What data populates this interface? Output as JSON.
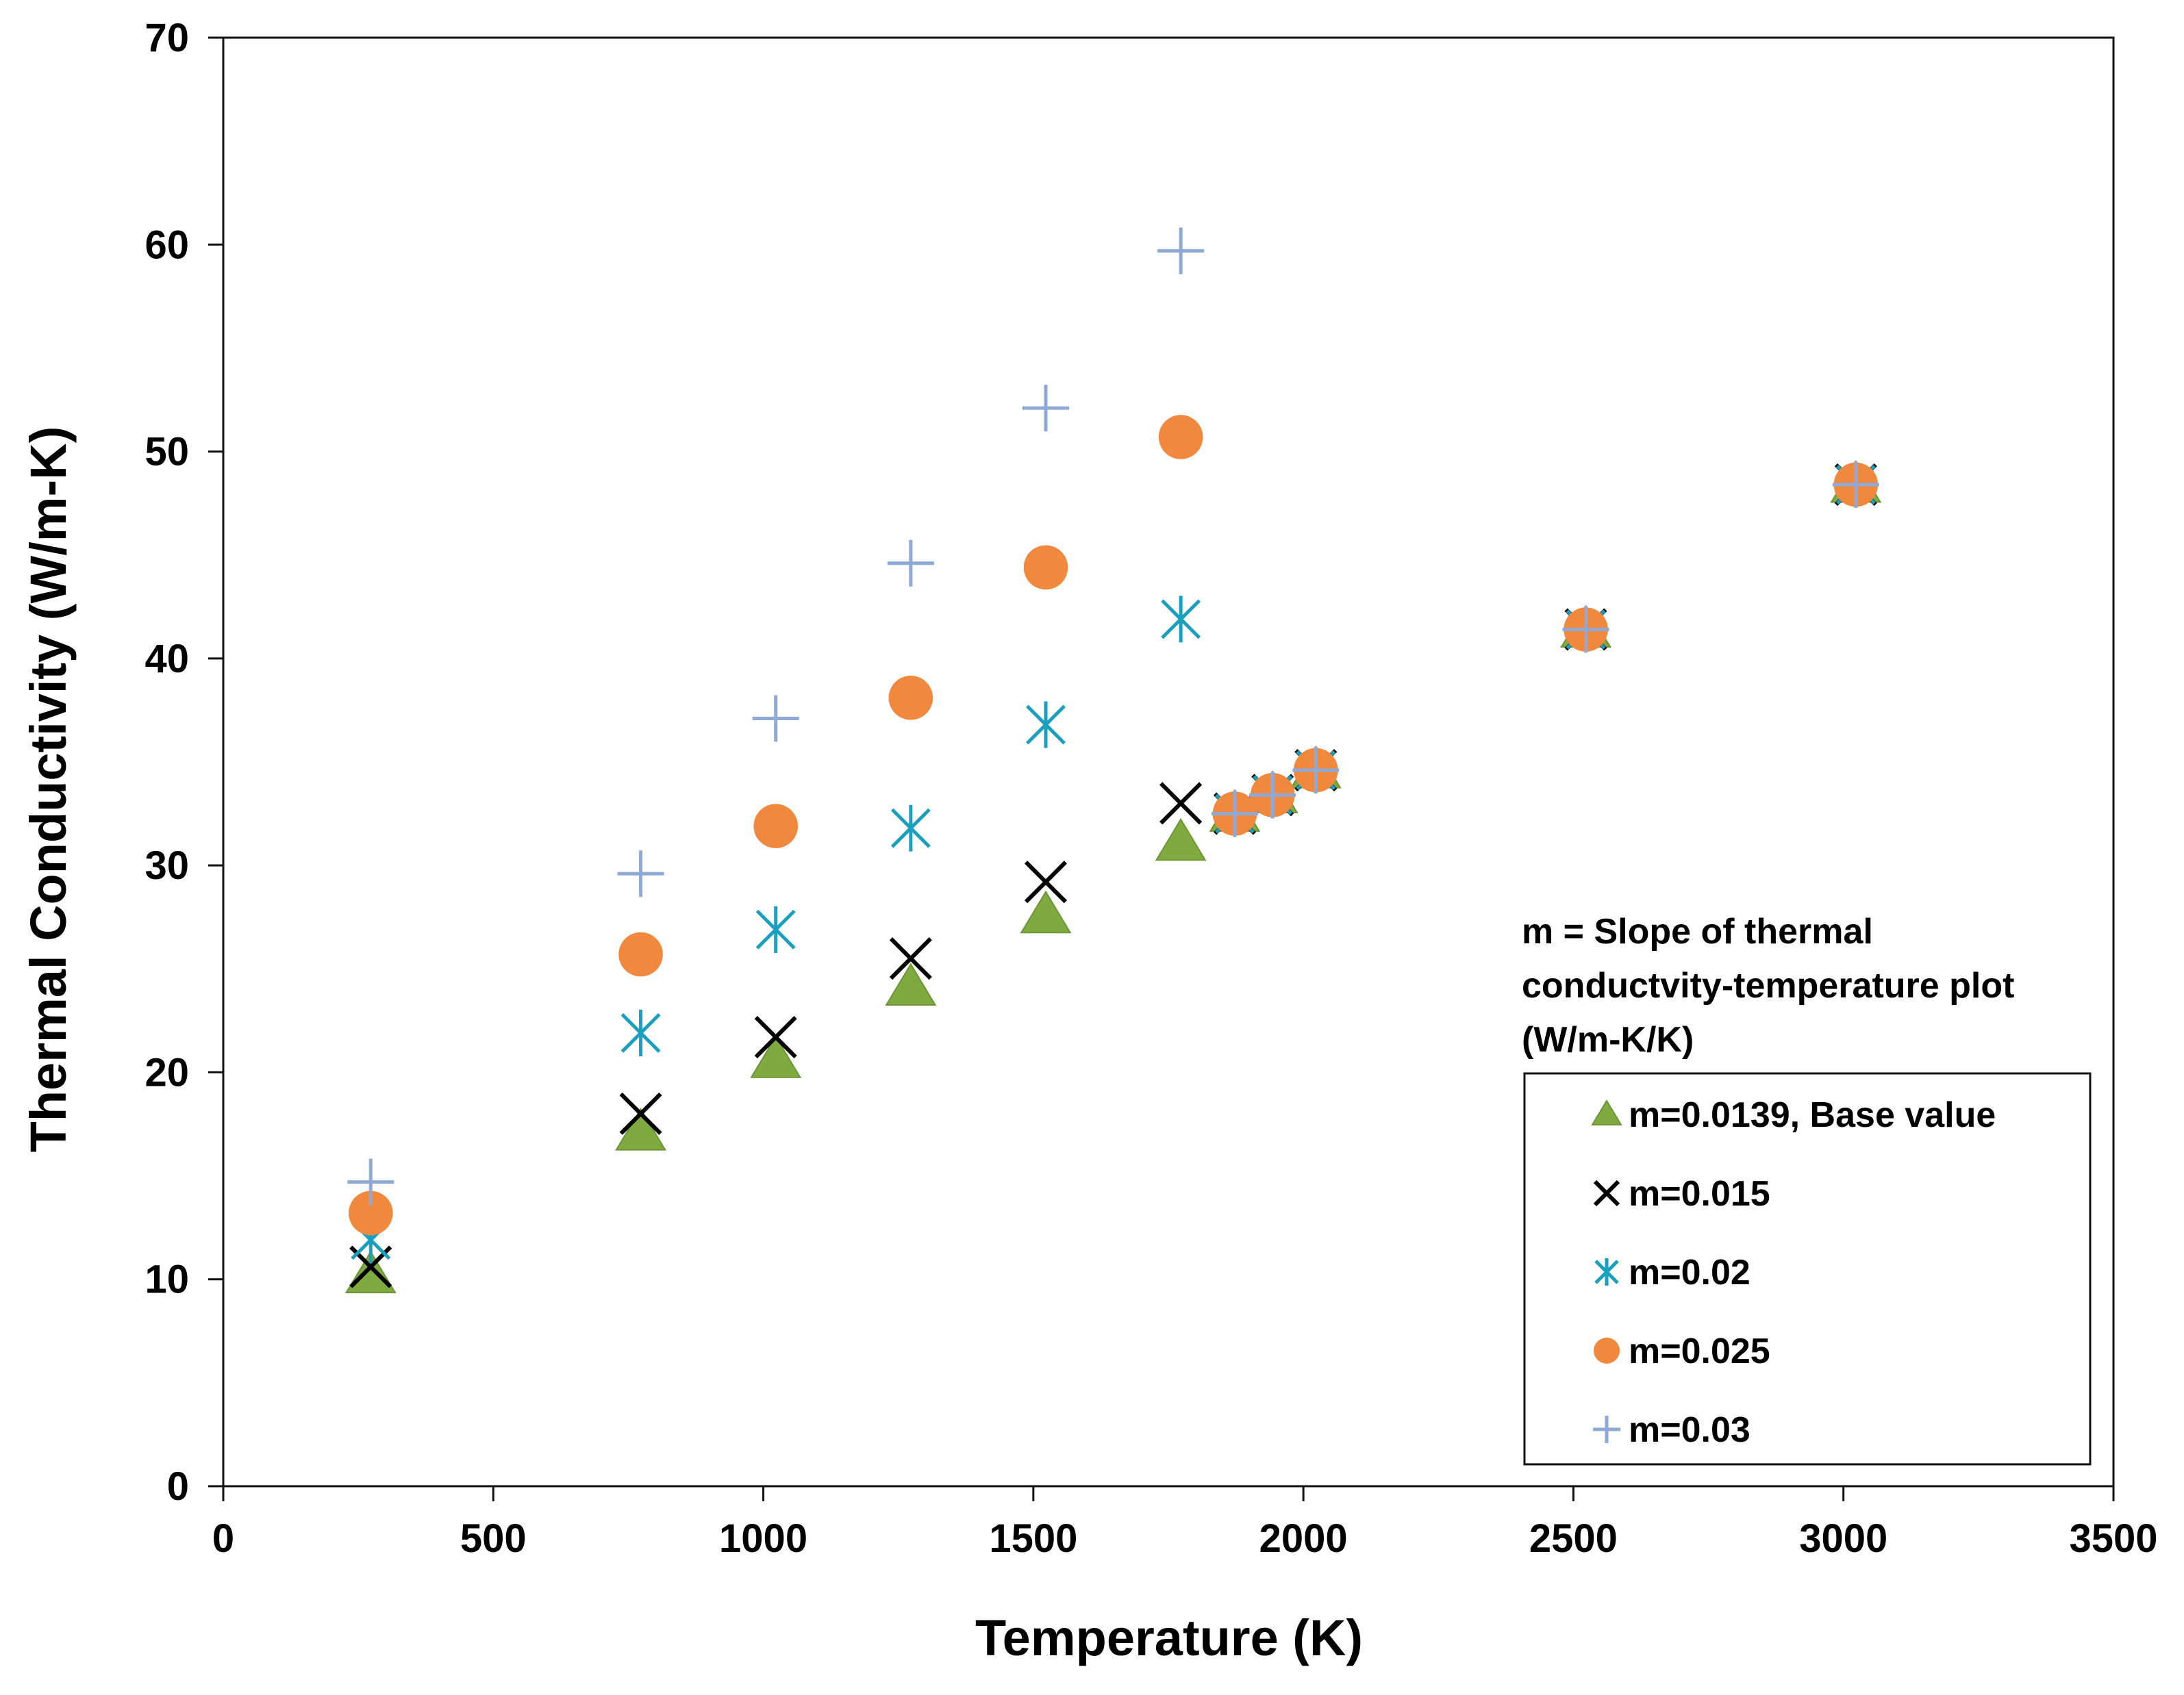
{
  "chart_data": {
    "type": "scatter",
    "title": "",
    "xlabel": "Temperature (K)",
    "ylabel": "Thermal Conductivity (W/m-K)",
    "xlim": [
      0,
      3500
    ],
    "ylim": [
      0,
      70
    ],
    "xticks": [
      0,
      500,
      1000,
      1500,
      2000,
      2500,
      3000,
      3500
    ],
    "yticks": [
      0,
      10,
      20,
      30,
      40,
      50,
      60,
      70
    ],
    "grid": false,
    "legend_position": "bottom-right",
    "legend_note": {
      "lines": [
        "m = Slope of thermal",
        "conductvity-temperature plot",
        "(W/m-K/K)"
      ]
    },
    "series": [
      {
        "name": "m=0.0139, Base value",
        "marker": "triangle",
        "color": "#7faa3f",
        "x": [
          273,
          773,
          1023,
          1273,
          1523,
          1773,
          1873,
          1943,
          2023,
          2523,
          3023
        ],
        "y": [
          10.2,
          17.1,
          20.6,
          24.1,
          27.6,
          31.1,
          32.5,
          33.4,
          34.6,
          41.4,
          48.4
        ]
      },
      {
        "name": "m=0.015",
        "marker": "x",
        "color": "#000000",
        "x": [
          273,
          773,
          1023,
          1273,
          1523,
          1773,
          1873,
          1943,
          2023,
          2523,
          3023
        ],
        "y": [
          10.6,
          18.0,
          21.7,
          25.5,
          29.2,
          33.0,
          32.5,
          33.4,
          34.6,
          41.4,
          48.4
        ]
      },
      {
        "name": "m=0.02",
        "marker": "asterisk",
        "color": "#1b9fbf",
        "x": [
          273,
          773,
          1023,
          1273,
          1523,
          1773,
          1873,
          1943,
          2023,
          2523,
          3023
        ],
        "y": [
          11.9,
          21.9,
          26.9,
          31.8,
          36.8,
          41.9,
          32.5,
          33.4,
          34.6,
          41.4,
          48.4
        ]
      },
      {
        "name": "m=0.025",
        "marker": "circle",
        "color": "#f0883e",
        "x": [
          273,
          773,
          1023,
          1273,
          1523,
          1773,
          1873,
          1943,
          2023,
          2523,
          3023
        ],
        "y": [
          13.2,
          25.7,
          31.9,
          38.1,
          44.4,
          50.7,
          32.5,
          33.4,
          34.6,
          41.4,
          48.4
        ]
      },
      {
        "name": "m=0.03",
        "marker": "plus",
        "color": "#8fa9d6",
        "x": [
          273,
          773,
          1023,
          1273,
          1523,
          1773,
          1873,
          1943,
          2023,
          2523,
          3023
        ],
        "y": [
          14.7,
          29.6,
          37.1,
          44.6,
          52.1,
          59.7,
          32.5,
          33.4,
          34.6,
          41.4,
          48.4
        ]
      }
    ]
  }
}
